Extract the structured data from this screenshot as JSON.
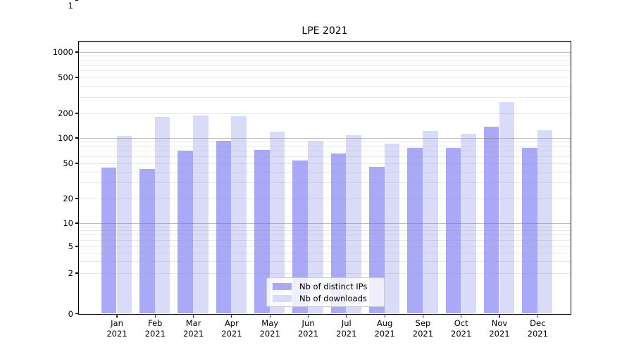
{
  "title": "LPE 2021",
  "chart_data": {
    "type": "bar",
    "title": "LPE 2021",
    "categories": [
      "Jan",
      "Feb",
      "Mar",
      "Apr",
      "May",
      "Jun",
      "Jul",
      "Aug",
      "Sep",
      "Oct",
      "Nov",
      "Dec"
    ],
    "category_year": "2021",
    "series": [
      {
        "name": "Nb of distinct IPs",
        "color": "#a9a9f7",
        "values": [
          44,
          43,
          70,
          92,
          71,
          54,
          65,
          45,
          76,
          75,
          137,
          75
        ]
      },
      {
        "name": "Nb of downloads",
        "color": "#dadaf9",
        "values": [
          106,
          178,
          186,
          182,
          119,
          92,
          108,
          85,
          120,
          112,
          265,
          122
        ]
      }
    ],
    "yscale": "symlog",
    "yticks": [
      0,
      1,
      2,
      5,
      10,
      20,
      50,
      100,
      200,
      500,
      1000
    ],
    "minor_gridlines": [
      2,
      3,
      4,
      5,
      6,
      7,
      8,
      9,
      20,
      30,
      40,
      50,
      60,
      70,
      80,
      90,
      200,
      300,
      400,
      500,
      600,
      700,
      800,
      900
    ],
    "major_gridlines": [
      1,
      10,
      100,
      1000
    ],
    "ylim": [
      0,
      1050
    ],
    "grid": true,
    "legend_position": "lower-center",
    "legend_labels": [
      "Nb of distinct IPs",
      "Nb of downloads"
    ]
  }
}
